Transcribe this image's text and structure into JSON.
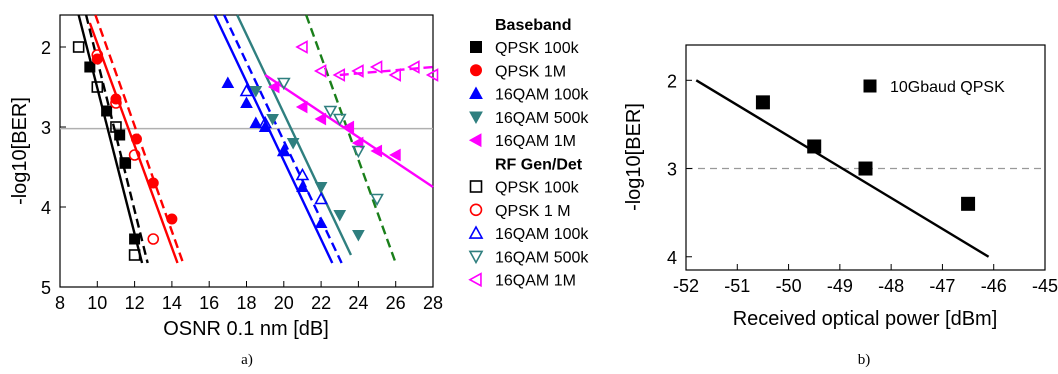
{
  "chart_data": [
    {
      "type": "scatter",
      "panel_label": "a)",
      "xlabel": "OSNR 0.1 nm [dB]",
      "ylabel": "-log10[BER]",
      "xlim": [
        8,
        28
      ],
      "ylim": [
        5,
        1.6
      ],
      "y_inverted": true,
      "xticks": [
        "8",
        "10",
        "12",
        "14",
        "16",
        "18",
        "20",
        "22",
        "24",
        "26",
        "28"
      ],
      "yticks": [
        "2",
        "3",
        "4",
        "5"
      ],
      "reference_line_y": 3.02,
      "legend": {
        "placement": "right-outside",
        "groups": [
          {
            "title": "Baseband",
            "entries": [
              "QPSK 100k",
              "QPSK 1M",
              "16QAM 100k",
              "16QAM 500k",
              "16QAM 1M"
            ]
          },
          {
            "title": "RF Gen/Det",
            "entries": [
              "QPSK 100k",
              "QPSK 1 M",
              "16QAM 100k",
              "16QAM 500k",
              "16QAM 1M"
            ]
          }
        ]
      },
      "series": [
        {
          "group": "Baseband",
          "marker": "square",
          "filled": true,
          "color": "#000000",
          "points": [
            [
              9.6,
              2.25
            ],
            [
              10.5,
              2.8
            ],
            [
              11.2,
              3.1
            ],
            [
              11.5,
              3.45
            ],
            [
              12.0,
              4.4
            ]
          ],
          "fit": [
            [
              9.0,
              1.5
            ],
            [
              12.4,
              4.7
            ]
          ]
        },
        {
          "group": "Baseband",
          "marker": "circle",
          "filled": true,
          "color": "#ff0000",
          "points": [
            [
              10.0,
              2.15
            ],
            [
              11.0,
              2.65
            ],
            [
              12.1,
              3.15
            ],
            [
              13.0,
              3.7
            ],
            [
              14.0,
              4.15
            ]
          ],
          "fit": [
            [
              9.6,
              1.7
            ],
            [
              14.3,
              4.7
            ]
          ]
        },
        {
          "group": "Baseband",
          "marker": "triangle-up",
          "filled": true,
          "color": "#0000ff",
          "points": [
            [
              17.0,
              2.45
            ],
            [
              18.0,
              2.7
            ],
            [
              18.5,
              2.95
            ],
            [
              19.0,
              3.0
            ],
            [
              20.0,
              3.3
            ],
            [
              21.0,
              3.75
            ],
            [
              22.0,
              4.2
            ]
          ],
          "fit": [
            [
              16.3,
              1.6
            ],
            [
              22.6,
              4.7
            ]
          ]
        },
        {
          "group": "Baseband",
          "marker": "triangle-down",
          "filled": true,
          "color": "#2f7f7f",
          "points": [
            [
              18.5,
              2.55
            ],
            [
              19.4,
              2.9
            ],
            [
              20.5,
              3.2
            ],
            [
              22.0,
              3.75
            ],
            [
              23.0,
              4.1
            ],
            [
              24.0,
              4.35
            ]
          ],
          "fit": [
            [
              17.5,
              1.6
            ],
            [
              23.6,
              4.6
            ]
          ]
        },
        {
          "group": "Baseband",
          "marker": "triangle-left",
          "filled": true,
          "color": "#ff00ff",
          "points": [
            [
              19.5,
              2.5
            ],
            [
              21.0,
              2.75
            ],
            [
              22.0,
              2.9
            ],
            [
              23.5,
              3.0
            ],
            [
              24.0,
              3.2
            ],
            [
              25.0,
              3.3
            ],
            [
              26.0,
              3.35
            ]
          ],
          "fit": [
            [
              19.0,
              2.35
            ],
            [
              28.0,
              3.75
            ]
          ]
        },
        {
          "group": "RF Gen/Det",
          "marker": "square",
          "filled": false,
          "color": "#000000",
          "points": [
            [
              9.0,
              2.0
            ],
            [
              10.0,
              2.5
            ],
            [
              11.0,
              3.0
            ],
            [
              11.5,
              3.45
            ],
            [
              12.0,
              4.6
            ]
          ],
          "fit_dashed": [
            [
              9.4,
              1.5
            ],
            [
              12.7,
              4.7
            ]
          ]
        },
        {
          "group": "RF Gen/Det",
          "marker": "circle",
          "filled": false,
          "color": "#ff0000",
          "points": [
            [
              10.0,
              2.1
            ],
            [
              11.0,
              2.7
            ],
            [
              12.0,
              3.35
            ],
            [
              13.0,
              4.4
            ]
          ],
          "fit_dashed": [
            [
              9.9,
              1.6
            ],
            [
              14.6,
              4.7
            ]
          ]
        },
        {
          "group": "RF Gen/Det",
          "marker": "triangle-up",
          "filled": false,
          "color": "#0000ff",
          "points": [
            [
              18.0,
              2.55
            ],
            [
              19.0,
              2.95
            ],
            [
              20.0,
              3.3
            ],
            [
              21.0,
              3.6
            ],
            [
              22.0,
              3.9
            ]
          ],
          "fit_dashed": [
            [
              16.8,
              1.6
            ],
            [
              23.1,
              4.7
            ]
          ]
        },
        {
          "group": "RF Gen/Det",
          "marker": "triangle-down",
          "filled": false,
          "color": "#2f7f7f",
          "points": [
            [
              20.0,
              2.45
            ],
            [
              22.5,
              2.8
            ],
            [
              23.0,
              2.9
            ],
            [
              24.0,
              3.3
            ],
            [
              25.0,
              3.9
            ]
          ],
          "fit_dashed": [
            [
              21.2,
              1.6
            ],
            [
              26.0,
              4.7
            ],
            "#1a7f1a"
          ]
        },
        {
          "group": "RF Gen/Det",
          "marker": "triangle-left",
          "filled": false,
          "color": "#ff00ff",
          "points": [
            [
              21.0,
              2.0
            ],
            [
              22.0,
              2.3
            ],
            [
              23.0,
              2.35
            ],
            [
              24.0,
              2.3
            ],
            [
              25.0,
              2.25
            ],
            [
              26.0,
              2.35
            ],
            [
              27.0,
              2.25
            ],
            [
              28.0,
              2.35
            ]
          ],
          "fit_dashed": [
            [
              23.0,
              2.35
            ],
            [
              28.0,
              2.25
            ]
          ]
        }
      ]
    },
    {
      "type": "scatter",
      "panel_label": "b)",
      "xlabel": "Received optical power [dBm]",
      "ylabel": "-log10[BER]",
      "xlim": [
        -52,
        -45
      ],
      "ylim": [
        4.15,
        1.6
      ],
      "y_inverted": true,
      "xticks": [
        "-52",
        "-51",
        "-50",
        "-49",
        "-48",
        "-47",
        "-46",
        "-45"
      ],
      "yticks": [
        "2",
        "3",
        "4"
      ],
      "reference_line_y": 3.0,
      "legend": {
        "placement": "top-right",
        "entries": [
          "10Gbaud QPSK"
        ]
      },
      "series": [
        {
          "name": "10Gbaud QPSK",
          "marker": "square",
          "filled": true,
          "color": "#000000",
          "points": [
            [
              -50.5,
              2.25
            ],
            [
              -49.5,
              2.75
            ],
            [
              -48.5,
              3.0
            ],
            [
              -46.5,
              3.4
            ]
          ],
          "fit": [
            [
              -51.8,
              2.0
            ],
            [
              -46.1,
              4.0
            ]
          ]
        }
      ]
    }
  ]
}
